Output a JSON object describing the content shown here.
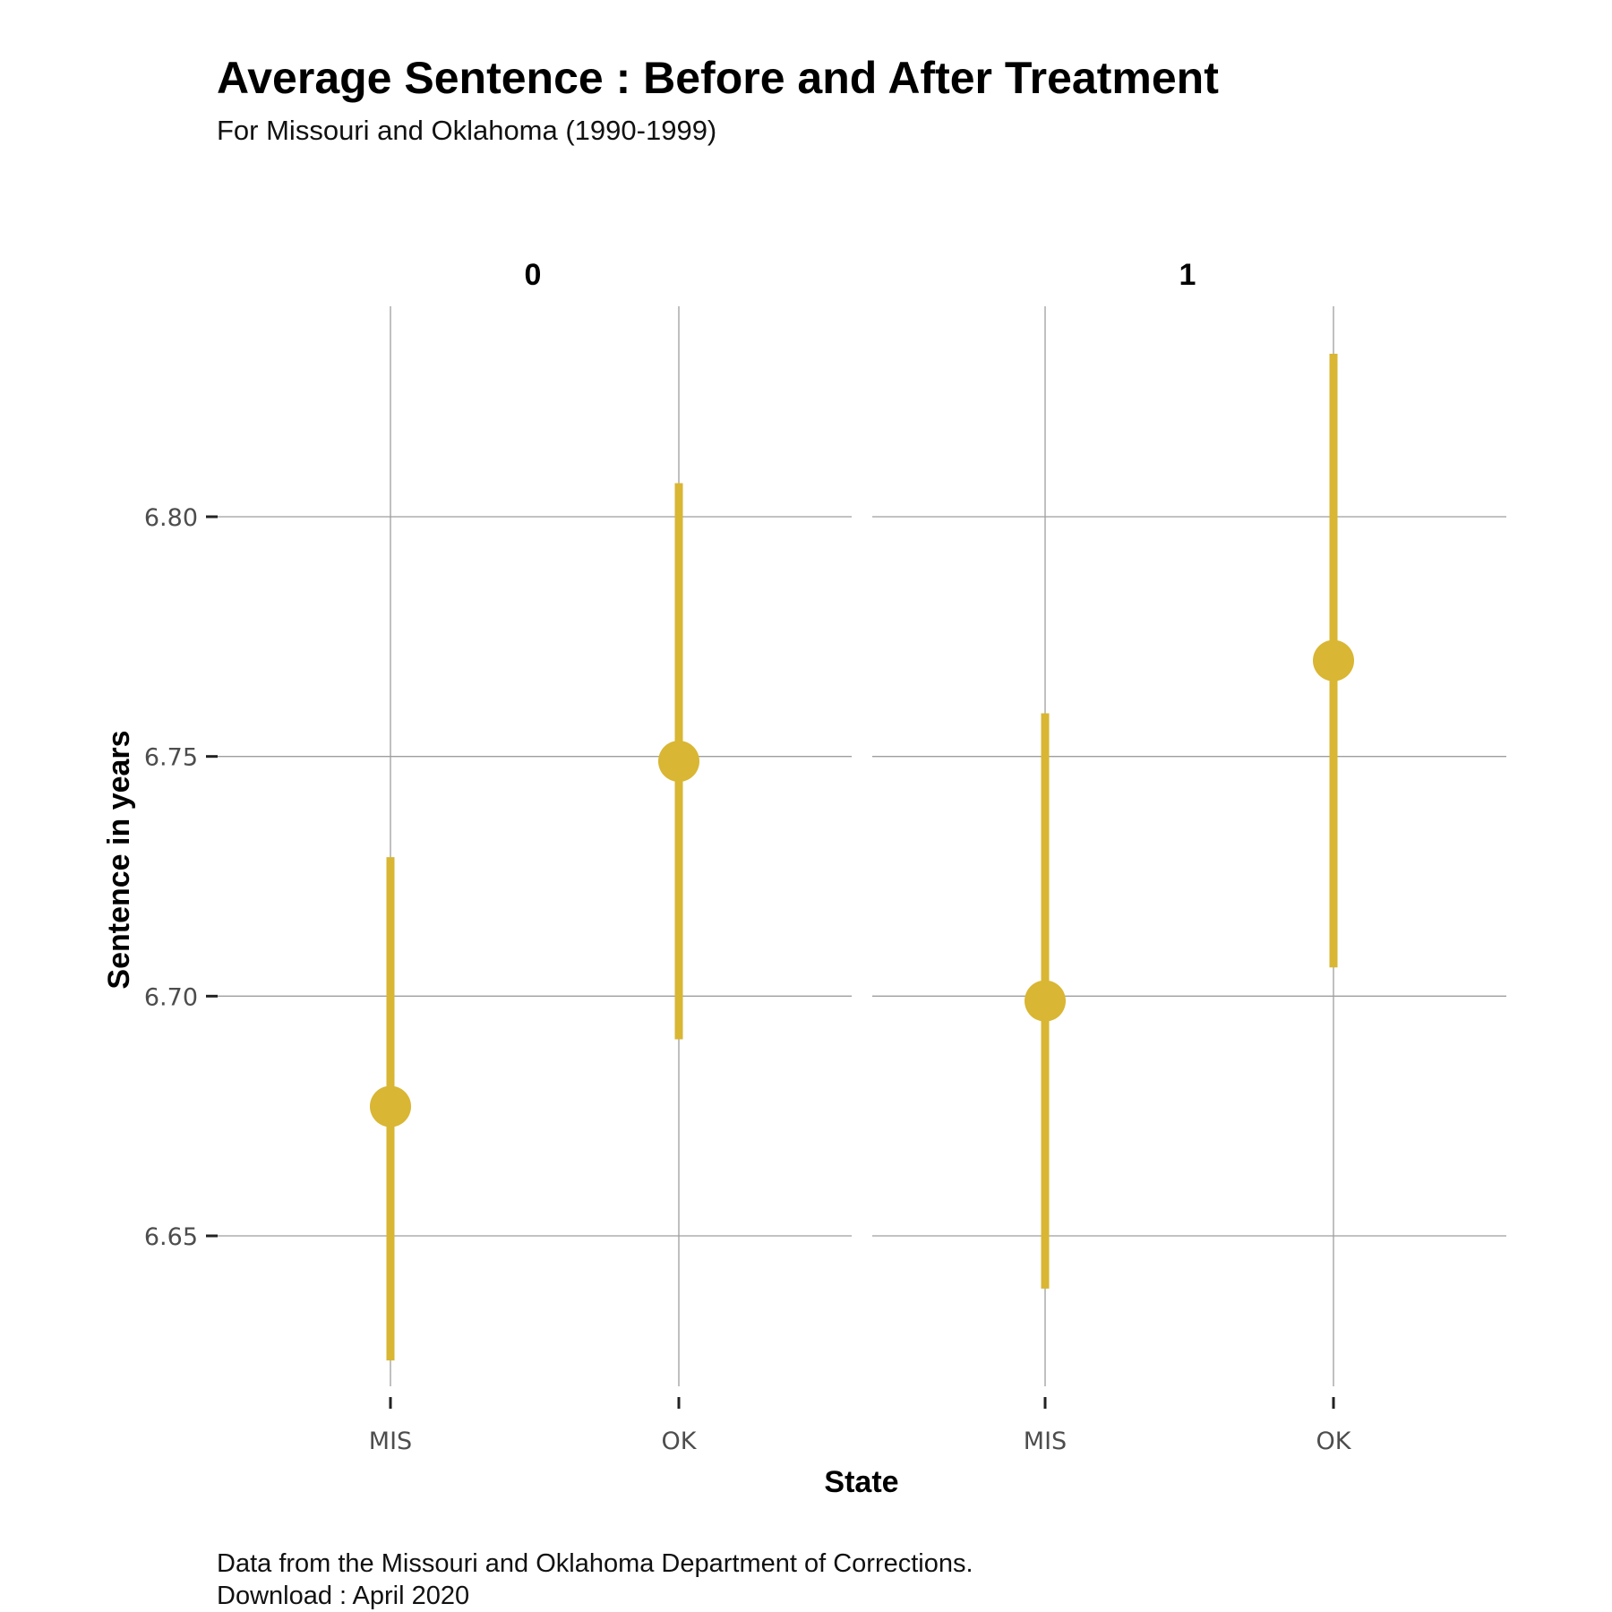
{
  "chart_data": {
    "type": "scatter",
    "title": "Average Sentence : Before and After Treatment",
    "subtitle": "For Missouri and Oklahoma (1990-1999)",
    "xlabel": "State",
    "ylabel": "Sentence in years",
    "caption": [
      "Data from the Missouri and Oklahoma Department of Corrections.",
      "Download : April 2020"
    ],
    "ylim": [
      6.612,
      6.855
    ],
    "yticks": [
      6.65,
      6.7,
      6.75,
      6.8
    ],
    "ytick_labels": [
      "6.65",
      "6.70",
      "6.75",
      "6.80"
    ],
    "categories": [
      "MIS",
      "OK"
    ],
    "grid": true,
    "point_color": "#d9b633",
    "facets": [
      {
        "label": "0",
        "points": [
          {
            "x": "MIS",
            "y": 6.677,
            "ymin": 6.624,
            "ymax": 6.729
          },
          {
            "x": "OK",
            "y": 6.749,
            "ymin": 6.691,
            "ymax": 6.807
          }
        ]
      },
      {
        "label": "1",
        "points": [
          {
            "x": "MIS",
            "y": 6.699,
            "ymin": 6.639,
            "ymax": 6.759
          },
          {
            "x": "OK",
            "y": 6.77,
            "ymin": 6.706,
            "ymax": 6.834
          }
        ]
      }
    ]
  }
}
